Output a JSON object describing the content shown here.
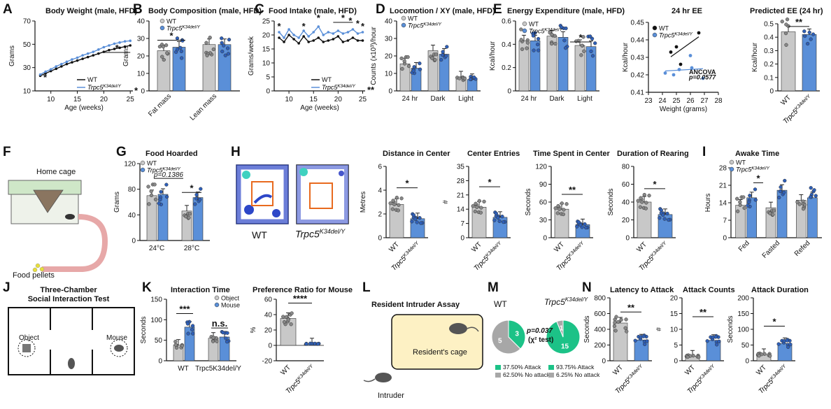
{
  "colors": {
    "wt": "#c8c8c8",
    "wt_dot": "#888888",
    "ko": "#5a8fd8",
    "ko_dot": "#2e5fb8",
    "black": "#111111",
    "orange": "#e86a1e",
    "green": "#1cc287",
    "grey": "#a7a7a7",
    "cage": "#fdf1c4",
    "cage_border": "#111111"
  },
  "legend": {
    "wt": "WT",
    "ko_base": "Trpc5",
    "ko_sup": "K34del/Y"
  },
  "panel_letters": [
    "A",
    "B",
    "C",
    "D",
    "E",
    "F",
    "G",
    "H",
    "I",
    "J",
    "K",
    "L",
    "M",
    "N"
  ],
  "titles": {
    "A": "Body Weight (male, HFD)",
    "B": "Body Composition (male, HFD)",
    "C": "Food Intake (male, HFD)",
    "D": "Locomotion / XY (male, HFD)",
    "E": "Energy Expenditure (male, HFD)",
    "E2": "24 hr EE",
    "E3": "Predicted EE (24 hr)",
    "G": "Food Hoarded",
    "H1": "Distance in Center",
    "H2": "Center Entries",
    "H3": "Time Spent in Center",
    "H4": "Duration of Rearing",
    "I": "Awake Time",
    "J": "Three-Chamber\nSocial Interaction Test",
    "K1": "Interaction Time",
    "K2": "Preference Ratio for Mouse",
    "L": "Resident Intruder Assay",
    "N1": "Latency to Attack",
    "N2": "Attack Counts",
    "N3": "Attack Duration"
  },
  "diagram_text": {
    "F_home": "Home cage",
    "F_pellets": "Food pellets",
    "H_wt": "WT",
    "J_object": "Object",
    "J_mouse": "Mouse",
    "L_cage": "Resident's cage",
    "L_intruder": "Intruder",
    "M_wt": "WT",
    "M_stat1": "p=0.037",
    "M_stat2": "(χ² test)"
  },
  "chart_data": [
    {
      "id": "A",
      "type": "line",
      "xlabel": "Age (weeks)",
      "ylabel": "Grams",
      "xlim": [
        7,
        25.5
      ],
      "ylim": [
        10,
        70
      ],
      "xticks": [
        10,
        15,
        20,
        25
      ],
      "yticks": [
        10,
        30,
        50,
        70
      ],
      "x": [
        8,
        9,
        10,
        11,
        12,
        13,
        14,
        15,
        16,
        17,
        18,
        19,
        20,
        21,
        22,
        23,
        24,
        25
      ],
      "series": [
        {
          "name": "WT",
          "values": [
            23,
            25,
            27,
            29,
            31,
            33,
            34.5,
            36,
            37.5,
            39,
            40.5,
            42,
            43.5,
            45,
            46,
            47,
            48,
            49
          ]
        },
        {
          "name": "Trpc5K34del/Y",
          "values": [
            24,
            26.5,
            28.5,
            31,
            33,
            35,
            37,
            38.5,
            40.5,
            42,
            43.5,
            45.5,
            47.5,
            49,
            50.5,
            51.5,
            52.5,
            53
          ]
        }
      ],
      "sig": [
        "*",
        "*",
        "*"
      ]
    },
    {
      "id": "B",
      "type": "bar",
      "ylabel": "Grams",
      "ylim": [
        0,
        40
      ],
      "yticks": [
        0,
        10,
        20,
        30,
        40
      ],
      "categories": [
        "Fat mass",
        "Lean mass"
      ],
      "series": [
        {
          "name": "WT",
          "values": [
            23,
            26.5
          ]
        },
        {
          "name": "Trpc5K34del/Y",
          "values": [
            25,
            26.5
          ]
        }
      ],
      "sig": [
        "*"
      ]
    },
    {
      "id": "C",
      "type": "line",
      "xlabel": "Age (weeks)",
      "ylabel": "Grams/week",
      "xlim": [
        7,
        25.5
      ],
      "ylim": [
        0,
        25
      ],
      "xticks": [
        10,
        15,
        20,
        25
      ],
      "yticks": [
        0,
        5,
        10,
        15,
        20,
        25
      ],
      "x": [
        8,
        9,
        10,
        11,
        12,
        13,
        14,
        15,
        16,
        17,
        18,
        19,
        20,
        21,
        22,
        23,
        24,
        25
      ],
      "series": [
        {
          "name": "WT",
          "values": [
            19,
            17.5,
            20,
            18.5,
            17,
            19.5,
            17.5,
            18,
            19,
            17.5,
            18,
            18.5,
            19.5,
            17.5,
            18,
            19,
            18,
            18
          ]
        },
        {
          "name": "Trpc5K34del/Y",
          "values": [
            21,
            19,
            22,
            20,
            19,
            21.5,
            19.5,
            21,
            23,
            20,
            21,
            20.5,
            21.5,
            20.5,
            21,
            22,
            20.5,
            21
          ]
        }
      ],
      "sig": [
        "*",
        "*",
        "*",
        "*",
        "*",
        "*",
        "*",
        "**"
      ]
    },
    {
      "id": "D",
      "type": "bar",
      "ylabel": "Counts (x10³)/hour",
      "ylim": [
        0,
        40
      ],
      "yticks": [
        0,
        10,
        20,
        30,
        40
      ],
      "categories": [
        "24 hr",
        "Dark",
        "Light"
      ],
      "series": [
        {
          "name": "WT",
          "values": [
            15.5,
            23,
            8
          ]
        },
        {
          "name": "Trpc5K34del/Y",
          "values": [
            13,
            21,
            6.5
          ]
        }
      ]
    },
    {
      "id": "E1",
      "type": "bar",
      "ylabel": "Kcal/hour",
      "ylim": [
        0,
        0.6
      ],
      "yticks": [
        0,
        0.2,
        0.4,
        0.6
      ],
      "categories": [
        "24 hr",
        "Dark",
        "Light"
      ],
      "series": [
        {
          "name": "WT",
          "values": [
            0.43,
            0.47,
            0.39
          ]
        },
        {
          "name": "Trpc5K34del/Y",
          "values": [
            0.43,
            0.46,
            0.38
          ]
        }
      ],
      "sig": [
        "*"
      ]
    },
    {
      "id": "E2",
      "type": "scatter",
      "xlabel": "Weight (grams)",
      "ylabel": "Kcal/hour",
      "xlim": [
        23,
        28
      ],
      "ylim": [
        0.41,
        0.45
      ],
      "xticks": [
        23,
        24,
        25,
        26,
        27,
        28
      ],
      "yticks": [
        0.41,
        0.42,
        0.43,
        0.44,
        0.45
      ],
      "series": [
        {
          "name": "WT",
          "points": [
            [
              24.6,
              0.433
            ],
            [
              25.0,
              0.436
            ],
            [
              25.3,
              0.426
            ],
            [
              26.6,
              0.444
            ]
          ]
        },
        {
          "name": "Trpc5K34del/Y",
          "points": [
            [
              24.2,
              0.421
            ],
            [
              24.8,
              0.42
            ],
            [
              25.2,
              0.423
            ],
            [
              26.0,
              0.431
            ],
            [
              26.1,
              0.424
            ],
            [
              26.9,
              0.418
            ]
          ]
        }
      ],
      "annotation": [
        "ANCOVA",
        "p=0.0577"
      ]
    },
    {
      "id": "E3",
      "type": "bar",
      "ylabel": "Kcal/hour",
      "ylim": [
        0,
        0.5
      ],
      "yticks": [
        0,
        0.1,
        0.2,
        0.3,
        0.4,
        0.5
      ],
      "categories": [
        "WT",
        "Trpc5K34del/Y"
      ],
      "values": [
        0.44,
        0.42
      ],
      "sig": [
        "**"
      ]
    },
    {
      "id": "G",
      "type": "bar",
      "ylabel": "Grams",
      "ylim": [
        0,
        120
      ],
      "yticks": [
        0,
        40,
        80,
        120
      ],
      "categories": [
        "24°C",
        "28°C"
      ],
      "series": [
        {
          "name": "WT",
          "values": [
            70,
            46
          ]
        },
        {
          "name": "Trpc5K34del/Y",
          "values": [
            72,
            67
          ]
        }
      ],
      "annotation": "p=0.1386",
      "sig": [
        "*"
      ]
    },
    {
      "id": "H1",
      "type": "bar",
      "ylabel": "Metres",
      "ylim": [
        0,
        6
      ],
      "yticks": [
        0,
        2,
        4,
        6
      ],
      "categories": [
        "WT",
        "Trpc5K34del/Y"
      ],
      "values": [
        2.8,
        1.6
      ],
      "sig": [
        "*"
      ]
    },
    {
      "id": "H2",
      "type": "bar",
      "ylabel": "#",
      "ylim": [
        0,
        35
      ],
      "yticks": [
        0,
        7,
        14,
        21,
        28,
        35
      ],
      "categories": [
        "WT",
        "Trpc5K34del/Y"
      ],
      "values": [
        15,
        10
      ],
      "sig": [
        "*"
      ]
    },
    {
      "id": "H3",
      "type": "bar",
      "ylabel": "Seconds",
      "ylim": [
        0,
        120
      ],
      "yticks": [
        0,
        30,
        60,
        90,
        120
      ],
      "categories": [
        "WT",
        "Trpc5K34del/Y"
      ],
      "values": [
        48,
        22
      ],
      "sig": [
        "**"
      ]
    },
    {
      "id": "H4",
      "type": "bar",
      "ylabel": "Seconds",
      "ylim": [
        0,
        80
      ],
      "yticks": [
        0,
        20,
        40,
        60,
        80
      ],
      "categories": [
        "WT",
        "Trpc5K34del/Y"
      ],
      "values": [
        40,
        26
      ],
      "sig": [
        "*"
      ]
    },
    {
      "id": "I",
      "type": "bar",
      "ylabel": "Hours",
      "ylim": [
        0,
        28
      ],
      "yticks": [
        0,
        7,
        14,
        21,
        28
      ],
      "categories": [
        "Fed",
        "Fasted",
        "Refed"
      ],
      "series": [
        {
          "name": "WT",
          "values": [
            13,
            12,
            15
          ]
        },
        {
          "name": "Trpc5K34del/Y",
          "values": [
            16,
            19,
            16
          ]
        }
      ],
      "sig": [
        "*"
      ]
    },
    {
      "id": "K1",
      "type": "bar",
      "ylabel": "Seconds",
      "ylim": [
        0,
        150
      ],
      "yticks": [
        0,
        50,
        100,
        150
      ],
      "categories": [
        "WT",
        "Trpc5K34del/Y"
      ],
      "series": [
        {
          "name": "Object",
          "values": [
            38,
            55
          ]
        },
        {
          "name": "Mouse",
          "values": [
            82,
            58
          ]
        }
      ],
      "sig": [
        "***",
        "n.s."
      ]
    },
    {
      "id": "K2",
      "type": "bar",
      "ylabel": "%",
      "ylim": [
        -20,
        60
      ],
      "yticks": [
        -20,
        0,
        20,
        40,
        60
      ],
      "categories": [
        "WT",
        "Trpc5K34del/Y"
      ],
      "values": [
        35,
        2
      ],
      "sig": [
        "****"
      ]
    },
    {
      "id": "M",
      "type": "pie",
      "pies": [
        {
          "name": "WT",
          "slices": [
            {
              "label": "37.50% Attack",
              "value": 3
            },
            {
              "label": "62.50% No attack",
              "value": 5
            }
          ]
        },
        {
          "name": "Trpc5K34del/Y",
          "slices": [
            {
              "label": "93.75% Attack",
              "value": 15
            },
            {
              "label": "6.25% No attack",
              "value": 1
            }
          ]
        }
      ]
    },
    {
      "id": "N1",
      "type": "bar",
      "ylabel": "Seconds",
      "ylim": [
        0,
        800
      ],
      "yticks": [
        0,
        200,
        400,
        600,
        800
      ],
      "categories": [
        "WT",
        "Trpc5K34del/Y"
      ],
      "values": [
        480,
        265
      ],
      "sig": [
        "**"
      ]
    },
    {
      "id": "N2",
      "type": "bar",
      "ylabel": "#",
      "ylim": [
        0,
        20
      ],
      "yticks": [
        0,
        5,
        10,
        15,
        20
      ],
      "categories": [
        "WT",
        "Trpc5K34del/Y"
      ],
      "values": [
        1.5,
        6.5
      ],
      "sig": [
        "**"
      ]
    },
    {
      "id": "N3",
      "type": "bar",
      "ylabel": "Seconds",
      "ylim": [
        0,
        200
      ],
      "yticks": [
        0,
        50,
        100,
        150,
        200
      ],
      "categories": [
        "WT",
        "Trpc5K34del/Y"
      ],
      "values": [
        20,
        55
      ],
      "sig": [
        "*"
      ]
    }
  ]
}
